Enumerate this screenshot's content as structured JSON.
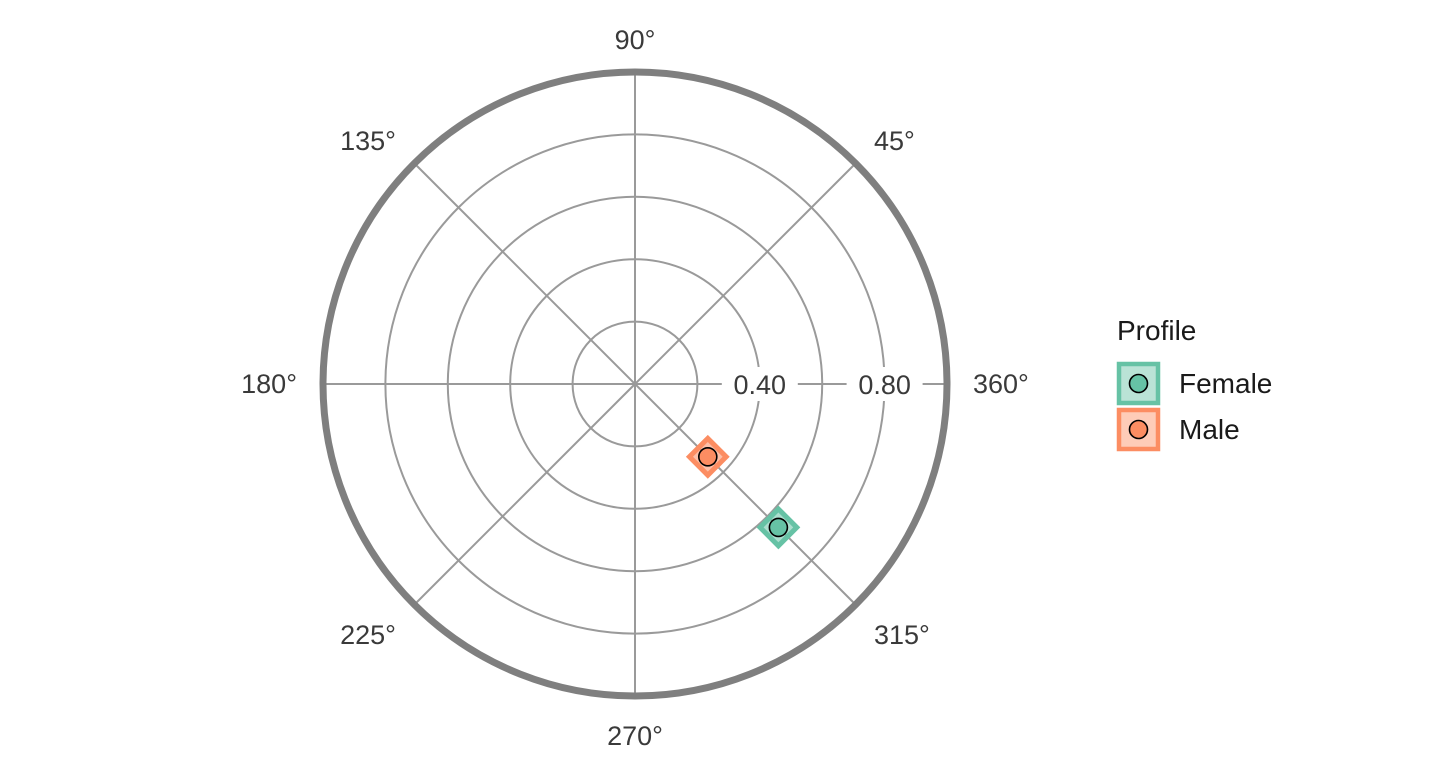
{
  "chart_data": {
    "type": "scatter",
    "coordinate_system": "polar",
    "title": "",
    "angle_ticks": [
      "90°",
      "45°",
      "135°",
      "180°",
      "360°",
      "225°",
      "315°",
      "270°"
    ],
    "angle_tick_values": [
      90,
      45,
      135,
      180,
      360,
      225,
      315,
      270
    ],
    "radial_ticks": [
      "0.40",
      "0.80"
    ],
    "radial_tick_values": [
      0.4,
      0.8
    ],
    "radial_range": [
      0,
      1
    ],
    "grid": true,
    "legend_position": "right",
    "legend_title": "Profile",
    "series": [
      {
        "name": "Female",
        "color": "#66c2a5",
        "angle_deg": 315,
        "radius": 0.65
      },
      {
        "name": "Male",
        "color": "#fc8d62",
        "angle_deg": 315,
        "radius": 0.33
      }
    ]
  }
}
